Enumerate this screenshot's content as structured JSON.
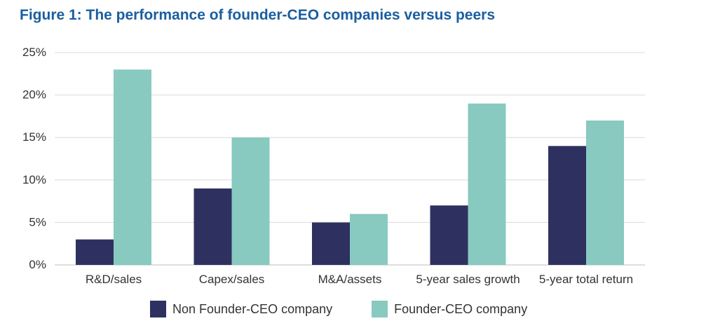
{
  "title": "Figure 1: The performance of founder-CEO companies versus peers",
  "colors": {
    "title": "#1a5e9f",
    "series_0": "#2e3160",
    "series_1": "#88c9c0",
    "grid": "#d9d9d9",
    "axis": "#bfbfbf"
  },
  "chart_data": {
    "type": "bar",
    "title": "Figure 1: The performance of founder-CEO companies versus peers",
    "xlabel": "",
    "ylabel": "",
    "categories": [
      "R&D/sales",
      "Capex/sales",
      "M&A/assets",
      "5-year sales growth",
      "5-year total return"
    ],
    "series": [
      {
        "name": "Non Founder-CEO company",
        "values": [
          3,
          9,
          5,
          7,
          14
        ]
      },
      {
        "name": "Founder-CEO company",
        "values": [
          23,
          15,
          6,
          19,
          17
        ]
      }
    ],
    "ylim": [
      0,
      25
    ],
    "yticks": [
      0,
      5,
      10,
      15,
      20,
      25
    ],
    "ytick_labels": [
      "0%",
      "5%",
      "10%",
      "15%",
      "20%",
      "25%"
    ],
    "grid": true,
    "legend_position": "bottom"
  }
}
